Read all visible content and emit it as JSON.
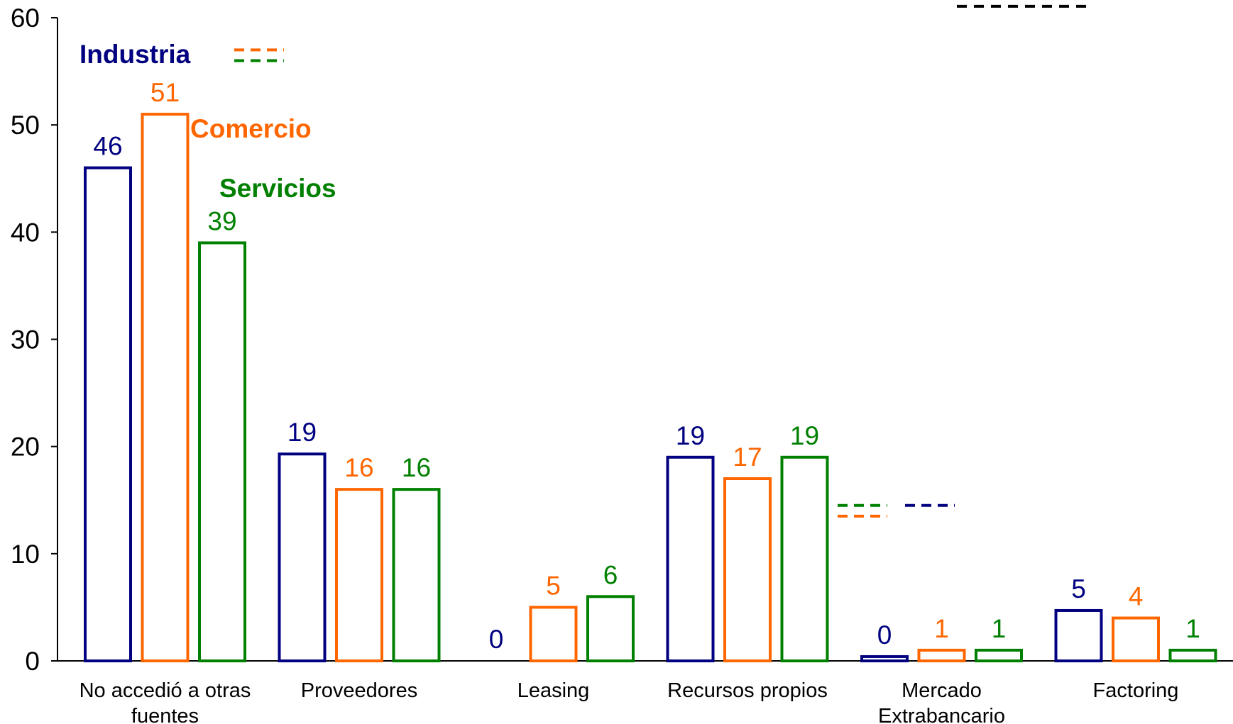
{
  "chart_data": {
    "type": "bar",
    "categories": [
      [
        "No accedió a otras",
        "fuentes"
      ],
      [
        "Proveedores"
      ],
      [
        "Leasing"
      ],
      [
        "Recursos propios"
      ],
      [
        "Mercado",
        "Extrabancario"
      ],
      [
        "Factoring"
      ]
    ],
    "series": [
      {
        "name": "Industria",
        "color": "#000080",
        "values": [
          46,
          19,
          0,
          19,
          0,
          5
        ],
        "marker_values": [
          null,
          null,
          null,
          14.5,
          null,
          null
        ],
        "bar_values": [
          46,
          19.3,
          0,
          19,
          0.4,
          4.7
        ]
      },
      {
        "name": "Comercio",
        "color": "#FF6600",
        "values": [
          51,
          16,
          5,
          17,
          1,
          4
        ],
        "marker_values": [
          57,
          null,
          null,
          13.5,
          null,
          null
        ],
        "bar_values": [
          51,
          16,
          5,
          17,
          1,
          4
        ]
      },
      {
        "name": "Servicios",
        "color": "#008000",
        "values": [
          39,
          16,
          6,
          19,
          1,
          1
        ],
        "marker_values": [
          56,
          null,
          null,
          14.5,
          null,
          null
        ],
        "bar_values": [
          39,
          16,
          6,
          19,
          1,
          1
        ]
      }
    ],
    "legend_marker": {
      "color": "#000000",
      "value": 61
    },
    "ylim": [
      0,
      60
    ],
    "yticks": [
      0,
      10,
      20,
      30,
      40,
      50,
      60
    ],
    "title": "",
    "xlabel": "",
    "ylabel": "",
    "grid": false,
    "legend": "inline labels near first group"
  }
}
